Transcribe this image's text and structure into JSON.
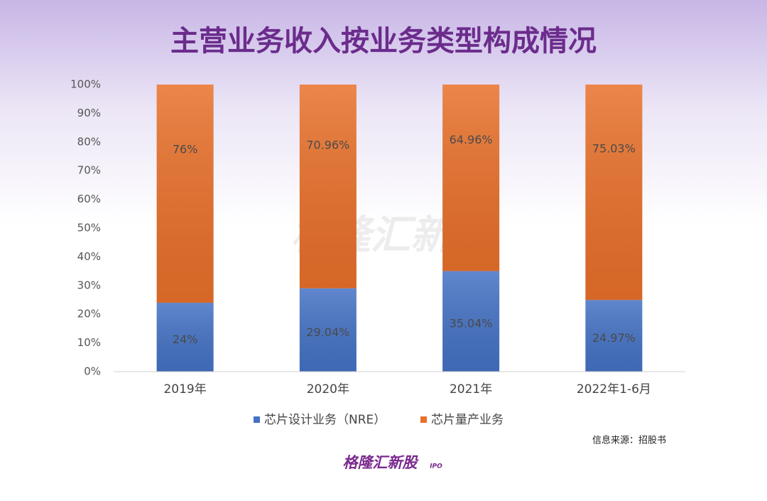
{
  "chart_data": {
    "type": "stacked_bar",
    "title": "主营业务收入按业务类型构成情况",
    "categories": [
      "2019年",
      "2020年",
      "2021年",
      "2022年1-6月"
    ],
    "series": [
      {
        "name": "芯片设计业务（NRE）",
        "color": "#4472c4",
        "values": [
          24,
          29.04,
          35.04,
          24.97
        ],
        "value_labels": [
          "24%",
          "29.04%",
          "35.04%",
          "24.97%"
        ]
      },
      {
        "name": "芯片量产业务",
        "color": "#e8702a",
        "values": [
          76,
          70.96,
          64.96,
          75.03
        ],
        "value_labels": [
          "76%",
          "70.96%",
          "64.96%",
          "75.03%"
        ]
      }
    ],
    "ylim": [
      0,
      100
    ],
    "yticks": [
      {
        "value": 0,
        "label": "0%"
      },
      {
        "value": 10,
        "label": "10%"
      },
      {
        "value": 20,
        "label": "20%"
      },
      {
        "value": 30,
        "label": "30%"
      },
      {
        "value": 40,
        "label": "40%"
      },
      {
        "value": 50,
        "label": "50%"
      },
      {
        "value": 60,
        "label": "60%"
      },
      {
        "value": 70,
        "label": "70%"
      },
      {
        "value": 80,
        "label": "80%"
      },
      {
        "value": 90,
        "label": "90%"
      },
      {
        "value": 100,
        "label": "100%"
      }
    ],
    "legend": "bottom",
    "source": "信息来源：招股书",
    "watermark": "格隆汇新股",
    "logo": "格隆汇新股",
    "logo_sub": "IPO"
  }
}
